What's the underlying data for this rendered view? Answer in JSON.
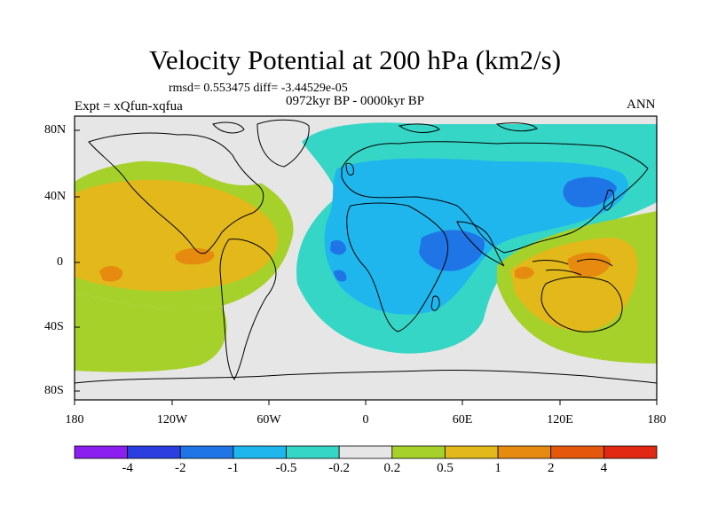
{
  "title": "Velocity Potential at 200 hPa (km2/s)",
  "stats": "rmsd= 0.553475  diff= -3.44529e-05",
  "expt": "Expt = xQfun-xqfua",
  "period": "0972kyr BP - 0000kyr BP",
  "season": "ANN",
  "y_ticks": [
    "80N",
    "40N",
    "0",
    "40S",
    "80S"
  ],
  "x_ticks": [
    "180",
    "120W",
    "60W",
    "0",
    "60E",
    "120E",
    "180"
  ],
  "colorbar": {
    "colors": [
      "#8a1ff0",
      "#2b3fe0",
      "#1f74e6",
      "#1fb6ee",
      "#35d6c6",
      "#e6e6e6",
      "#a6d12a",
      "#e2b81a",
      "#e68a10",
      "#e5580c",
      "#e02812"
    ],
    "labels": [
      "-4",
      "-2",
      "-1",
      "-0.5",
      "-0.2",
      "0.2",
      "0.5",
      "1",
      "2",
      "4"
    ]
  },
  "map_colors": {
    "neutral": "#e6e6e6",
    "pos_weak": "#a6d12a",
    "pos_mid": "#e2b81a",
    "pos_strong": "#e68a10",
    "neg_weak": "#35d6c6",
    "neg_mid": "#1fb6ee",
    "neg_strong": "#1f74e6"
  }
}
